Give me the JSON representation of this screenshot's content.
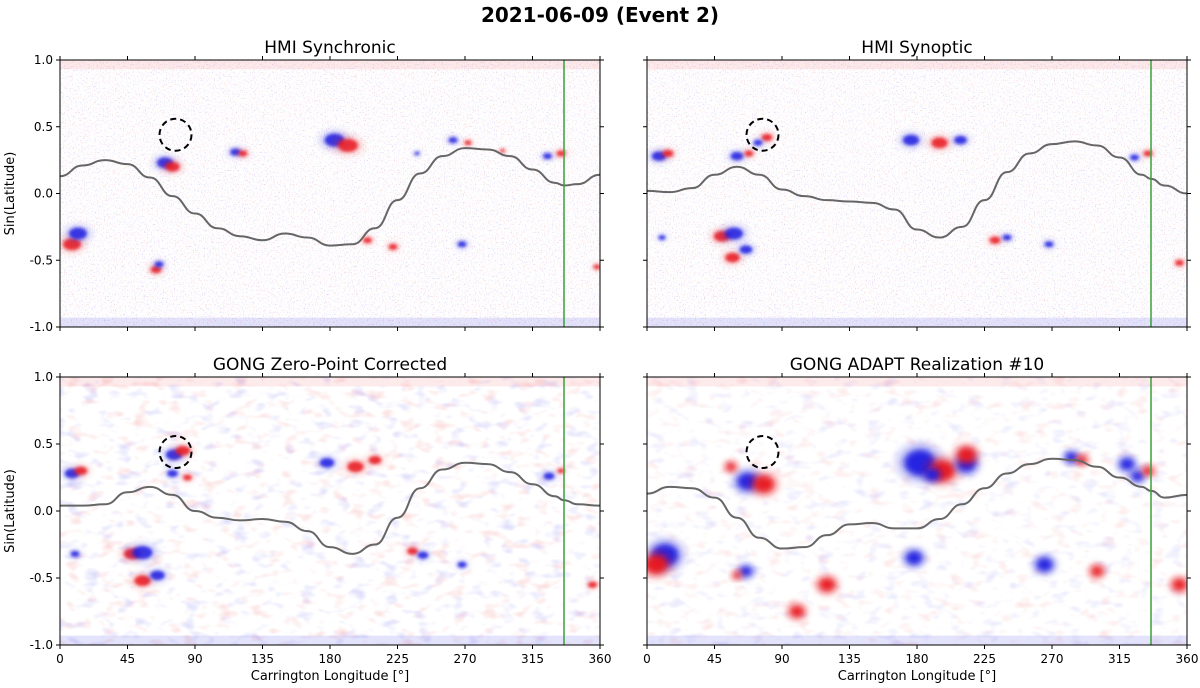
{
  "figure_title": "2021-06-09 (Event 2)",
  "colors": {
    "positive_polarity": "#e8141e",
    "negative_polarity": "#1a1ae0",
    "neutral_line": "#666666",
    "marker_line": "#3aa03a",
    "circle": "#000000"
  },
  "chart_data": [
    {
      "type": "heatmap",
      "title": "HMI Synchronic",
      "xlabel": "",
      "ylabel": "Sin(Latitude)",
      "xlim": [
        0,
        360
      ],
      "ylim": [
        -1.0,
        1.0
      ],
      "xticks": [
        "0",
        "45",
        "90",
        "135",
        "180",
        "225",
        "270",
        "315",
        "360"
      ],
      "yticks": [
        "-1.0",
        "-0.5",
        "0.0",
        "0.5",
        "1.0"
      ],
      "vertical_marker_longitude": 336,
      "circle": {
        "lon": 77,
        "lat": 0.44,
        "radius_deg": 8
      },
      "neutral_line": {
        "lon": [
          0,
          15,
          30,
          45,
          60,
          75,
          90,
          105,
          120,
          135,
          150,
          165,
          180,
          195,
          210,
          225,
          240,
          255,
          270,
          285,
          300,
          315,
          330,
          336,
          345,
          360
        ],
        "lat": [
          0.13,
          0.21,
          0.25,
          0.22,
          0.12,
          -0.02,
          -0.15,
          -0.26,
          -0.32,
          -0.35,
          -0.3,
          -0.33,
          -0.39,
          -0.38,
          -0.26,
          -0.05,
          0.15,
          0.28,
          0.34,
          0.33,
          0.28,
          0.18,
          0.08,
          0.06,
          0.07,
          0.14
        ]
      },
      "regions": [
        {
          "lon": 8,
          "lat": -0.38,
          "pol": "pos",
          "size": 1.0
        },
        {
          "lon": 12,
          "lat": -0.3,
          "pol": "neg",
          "size": 1.0
        },
        {
          "lon": 70,
          "lat": 0.23,
          "pol": "neg",
          "size": 0.9
        },
        {
          "lon": 75,
          "lat": 0.2,
          "pol": "pos",
          "size": 0.8
        },
        {
          "lon": 64,
          "lat": -0.57,
          "pol": "pos",
          "size": 0.6
        },
        {
          "lon": 66,
          "lat": -0.53,
          "pol": "neg",
          "size": 0.5
        },
        {
          "lon": 117,
          "lat": 0.31,
          "pol": "neg",
          "size": 0.6
        },
        {
          "lon": 122,
          "lat": 0.3,
          "pol": "pos",
          "size": 0.5
        },
        {
          "lon": 183,
          "lat": 0.4,
          "pol": "neg",
          "size": 1.1
        },
        {
          "lon": 192,
          "lat": 0.36,
          "pol": "pos",
          "size": 1.1
        },
        {
          "lon": 262,
          "lat": 0.4,
          "pol": "neg",
          "size": 0.5
        },
        {
          "lon": 272,
          "lat": 0.38,
          "pol": "pos",
          "size": 0.4
        },
        {
          "lon": 325,
          "lat": 0.28,
          "pol": "neg",
          "size": 0.5
        },
        {
          "lon": 334,
          "lat": 0.3,
          "pol": "pos",
          "size": 0.5
        },
        {
          "lon": 205,
          "lat": -0.35,
          "pol": "pos",
          "size": 0.5
        },
        {
          "lon": 222,
          "lat": -0.4,
          "pol": "pos",
          "size": 0.5
        },
        {
          "lon": 268,
          "lat": -0.38,
          "pol": "neg",
          "size": 0.5
        },
        {
          "lon": 358,
          "lat": -0.55,
          "pol": "pos",
          "size": 0.4
        },
        {
          "lon": 295,
          "lat": 0.32,
          "pol": "pos",
          "size": 0.3
        },
        {
          "lon": 238,
          "lat": 0.3,
          "pol": "neg",
          "size": 0.3
        }
      ]
    },
    {
      "type": "heatmap",
      "title": "HMI Synoptic",
      "xlabel": "",
      "ylabel": "",
      "xlim": [
        0,
        360
      ],
      "ylim": [
        -1.0,
        1.0
      ],
      "xticks": [
        "0",
        "45",
        "90",
        "135",
        "180",
        "225",
        "270",
        "315",
        "360"
      ],
      "yticks": [
        "-1.0",
        "-0.5",
        "0.0",
        "0.5",
        "1.0"
      ],
      "vertical_marker_longitude": 336,
      "circle": {
        "lon": 77,
        "lat": 0.44,
        "radius_deg": 8
      },
      "neutral_line": {
        "lon": [
          0,
          15,
          30,
          45,
          60,
          75,
          90,
          105,
          120,
          135,
          150,
          165,
          180,
          195,
          210,
          225,
          240,
          255,
          270,
          285,
          300,
          315,
          330,
          336,
          345,
          360
        ],
        "lat": [
          0.02,
          0.01,
          0.04,
          0.14,
          0.2,
          0.14,
          0.03,
          -0.02,
          -0.05,
          -0.06,
          -0.07,
          -0.12,
          -0.27,
          -0.33,
          -0.25,
          -0.05,
          0.16,
          0.3,
          0.37,
          0.39,
          0.36,
          0.27,
          0.14,
          0.11,
          0.06,
          0.0
        ]
      },
      "regions": [
        {
          "lon": 8,
          "lat": 0.28,
          "pol": "neg",
          "size": 0.8
        },
        {
          "lon": 14,
          "lat": 0.3,
          "pol": "pos",
          "size": 0.6
        },
        {
          "lon": 60,
          "lat": 0.28,
          "pol": "neg",
          "size": 0.7
        },
        {
          "lon": 68,
          "lat": 0.3,
          "pol": "pos",
          "size": 0.5
        },
        {
          "lon": 80,
          "lat": 0.42,
          "pol": "pos",
          "size": 0.6
        },
        {
          "lon": 74,
          "lat": 0.38,
          "pol": "neg",
          "size": 0.5
        },
        {
          "lon": 50,
          "lat": -0.32,
          "pol": "pos",
          "size": 0.9
        },
        {
          "lon": 58,
          "lat": -0.3,
          "pol": "neg",
          "size": 1.0
        },
        {
          "lon": 57,
          "lat": -0.48,
          "pol": "pos",
          "size": 0.8
        },
        {
          "lon": 66,
          "lat": -0.42,
          "pol": "neg",
          "size": 0.7
        },
        {
          "lon": 10,
          "lat": -0.33,
          "pol": "neg",
          "size": 0.4
        },
        {
          "lon": 176,
          "lat": 0.4,
          "pol": "neg",
          "size": 0.9
        },
        {
          "lon": 195,
          "lat": 0.38,
          "pol": "pos",
          "size": 0.9
        },
        {
          "lon": 209,
          "lat": 0.4,
          "pol": "neg",
          "size": 0.7
        },
        {
          "lon": 232,
          "lat": -0.35,
          "pol": "pos",
          "size": 0.6
        },
        {
          "lon": 240,
          "lat": -0.33,
          "pol": "neg",
          "size": 0.5
        },
        {
          "lon": 268,
          "lat": -0.38,
          "pol": "neg",
          "size": 0.5
        },
        {
          "lon": 325,
          "lat": 0.27,
          "pol": "neg",
          "size": 0.5
        },
        {
          "lon": 334,
          "lat": 0.3,
          "pol": "pos",
          "size": 0.5
        },
        {
          "lon": 355,
          "lat": -0.52,
          "pol": "pos",
          "size": 0.5
        }
      ]
    },
    {
      "type": "heatmap",
      "title": "GONG Zero-Point Corrected",
      "xlabel": "Carrington Longitude [°]",
      "ylabel": "Sin(Latitude)",
      "xlim": [
        0,
        360
      ],
      "ylim": [
        -1.0,
        1.0
      ],
      "xticks": [
        "0",
        "45",
        "90",
        "135",
        "180",
        "225",
        "270",
        "315",
        "360"
      ],
      "yticks": [
        "-1.0",
        "-0.5",
        "0.0",
        "0.5",
        "1.0"
      ],
      "vertical_marker_longitude": 336,
      "circle": {
        "lon": 77,
        "lat": 0.44,
        "radius_deg": 8
      },
      "neutral_line": {
        "lon": [
          0,
          15,
          30,
          45,
          60,
          75,
          90,
          105,
          120,
          135,
          150,
          165,
          180,
          195,
          210,
          225,
          240,
          255,
          270,
          285,
          300,
          315,
          330,
          336,
          345,
          360
        ],
        "lat": [
          0.04,
          0.04,
          0.05,
          0.14,
          0.18,
          0.12,
          0.0,
          -0.05,
          -0.07,
          -0.06,
          -0.08,
          -0.15,
          -0.27,
          -0.32,
          -0.25,
          -0.05,
          0.17,
          0.31,
          0.36,
          0.35,
          0.29,
          0.2,
          0.11,
          0.08,
          0.05,
          0.04
        ]
      },
      "regions": [
        {
          "lon": 8,
          "lat": 0.28,
          "pol": "neg",
          "size": 0.8
        },
        {
          "lon": 14,
          "lat": 0.3,
          "pol": "pos",
          "size": 0.7
        },
        {
          "lon": 76,
          "lat": 0.42,
          "pol": "neg",
          "size": 0.9
        },
        {
          "lon": 82,
          "lat": 0.45,
          "pol": "pos",
          "size": 0.8
        },
        {
          "lon": 75,
          "lat": 0.28,
          "pol": "neg",
          "size": 0.6
        },
        {
          "lon": 85,
          "lat": 0.25,
          "pol": "pos",
          "size": 0.5
        },
        {
          "lon": 48,
          "lat": -0.32,
          "pol": "pos",
          "size": 0.9
        },
        {
          "lon": 55,
          "lat": -0.31,
          "pol": "neg",
          "size": 1.1
        },
        {
          "lon": 55,
          "lat": -0.52,
          "pol": "pos",
          "size": 0.9
        },
        {
          "lon": 65,
          "lat": -0.48,
          "pol": "neg",
          "size": 0.8
        },
        {
          "lon": 10,
          "lat": -0.32,
          "pol": "neg",
          "size": 0.5
        },
        {
          "lon": 178,
          "lat": 0.36,
          "pol": "neg",
          "size": 0.8
        },
        {
          "lon": 197,
          "lat": 0.33,
          "pol": "pos",
          "size": 0.9
        },
        {
          "lon": 210,
          "lat": 0.38,
          "pol": "pos",
          "size": 0.7
        },
        {
          "lon": 235,
          "lat": -0.3,
          "pol": "pos",
          "size": 0.6
        },
        {
          "lon": 242,
          "lat": -0.33,
          "pol": "neg",
          "size": 0.6
        },
        {
          "lon": 268,
          "lat": -0.4,
          "pol": "neg",
          "size": 0.5
        },
        {
          "lon": 326,
          "lat": 0.26,
          "pol": "neg",
          "size": 0.6
        },
        {
          "lon": 334,
          "lat": 0.3,
          "pol": "pos",
          "size": 0.4
        },
        {
          "lon": 355,
          "lat": -0.55,
          "pol": "pos",
          "size": 0.5
        }
      ]
    },
    {
      "type": "heatmap",
      "title": "GONG ADAPT Realization #10",
      "xlabel": "Carrington Longitude [°]",
      "ylabel": "",
      "xlim": [
        0,
        360
      ],
      "ylim": [
        -1.0,
        1.0
      ],
      "xticks": [
        "0",
        "45",
        "90",
        "135",
        "180",
        "225",
        "270",
        "315",
        "360"
      ],
      "yticks": [
        "-1.0",
        "-0.5",
        "0.0",
        "0.5",
        "1.0"
      ],
      "vertical_marker_longitude": 336,
      "circle": {
        "lon": 77,
        "lat": 0.44,
        "radius_deg": 8
      },
      "neutral_line": {
        "lon": [
          0,
          15,
          30,
          45,
          60,
          75,
          90,
          105,
          120,
          135,
          150,
          165,
          180,
          195,
          210,
          225,
          240,
          255,
          270,
          285,
          300,
          315,
          330,
          336,
          345,
          360
        ],
        "lat": [
          0.13,
          0.18,
          0.17,
          0.1,
          -0.05,
          -0.2,
          -0.28,
          -0.27,
          -0.18,
          -0.1,
          -0.09,
          -0.13,
          -0.13,
          -0.06,
          0.05,
          0.17,
          0.28,
          0.35,
          0.39,
          0.38,
          0.33,
          0.25,
          0.18,
          0.15,
          0.1,
          0.12
        ]
      },
      "regions": [
        {
          "lon": 12,
          "lat": -0.33,
          "pol": "neg",
          "size": 1.3
        },
        {
          "lon": 6,
          "lat": -0.4,
          "pol": "pos",
          "size": 1.1
        },
        {
          "lon": 67,
          "lat": 0.22,
          "pol": "neg",
          "size": 1.0
        },
        {
          "lon": 78,
          "lat": 0.2,
          "pol": "pos",
          "size": 1.0
        },
        {
          "lon": 56,
          "lat": 0.33,
          "pol": "pos",
          "size": 0.5
        },
        {
          "lon": 66,
          "lat": -0.45,
          "pol": "neg",
          "size": 0.6
        },
        {
          "lon": 60,
          "lat": -0.48,
          "pol": "pos",
          "size": 0.4
        },
        {
          "lon": 182,
          "lat": 0.36,
          "pol": "neg",
          "size": 1.5
        },
        {
          "lon": 197,
          "lat": 0.3,
          "pol": "pos",
          "size": 1.2
        },
        {
          "lon": 190,
          "lat": 0.27,
          "pol": "neg",
          "size": 0.7
        },
        {
          "lon": 213,
          "lat": 0.35,
          "pol": "neg",
          "size": 0.9
        },
        {
          "lon": 213,
          "lat": 0.42,
          "pol": "pos",
          "size": 0.9
        },
        {
          "lon": 283,
          "lat": 0.4,
          "pol": "neg",
          "size": 0.6
        },
        {
          "lon": 290,
          "lat": 0.38,
          "pol": "pos",
          "size": 0.5
        },
        {
          "lon": 320,
          "lat": 0.35,
          "pol": "neg",
          "size": 0.7
        },
        {
          "lon": 327,
          "lat": 0.26,
          "pol": "neg",
          "size": 0.6
        },
        {
          "lon": 334,
          "lat": 0.3,
          "pol": "pos",
          "size": 0.5
        },
        {
          "lon": 178,
          "lat": -0.35,
          "pol": "neg",
          "size": 0.8
        },
        {
          "lon": 265,
          "lat": -0.4,
          "pol": "neg",
          "size": 0.8
        },
        {
          "lon": 300,
          "lat": -0.45,
          "pol": "pos",
          "size": 0.6
        },
        {
          "lon": 355,
          "lat": -0.55,
          "pol": "pos",
          "size": 0.7
        },
        {
          "lon": 120,
          "lat": -0.55,
          "pol": "pos",
          "size": 0.8
        },
        {
          "lon": 100,
          "lat": -0.75,
          "pol": "pos",
          "size": 0.7
        }
      ]
    }
  ]
}
